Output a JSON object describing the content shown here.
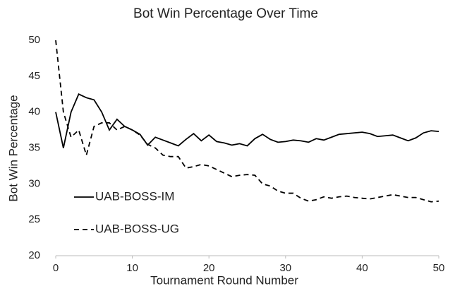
{
  "chart_data": {
    "type": "line",
    "title": "Bot Win Percentage Over Time",
    "xlabel": "Tournament Round Number",
    "ylabel": "Bot Win Percentage",
    "x": [
      0,
      1,
      2,
      3,
      4,
      5,
      6,
      7,
      8,
      9,
      10,
      11,
      12,
      13,
      14,
      15,
      16,
      17,
      18,
      19,
      20,
      21,
      22,
      23,
      24,
      25,
      26,
      27,
      28,
      29,
      30,
      31,
      32,
      33,
      34,
      35,
      36,
      37,
      38,
      39,
      40,
      41,
      42,
      43,
      44,
      45,
      46,
      47,
      48,
      49,
      50
    ],
    "series": [
      {
        "name": "UAB-BOSS-IM",
        "color": "#000000",
        "dash": "solid",
        "values": [
          40,
          35,
          40,
          42.5,
          42,
          41.7,
          40,
          37.5,
          39,
          38,
          37.5,
          36.9,
          35.4,
          36.5,
          36.1,
          35.7,
          35.3,
          36.2,
          37,
          36,
          36.8,
          35.9,
          35.7,
          35.4,
          35.6,
          35.3,
          36.3,
          36.9,
          36.2,
          35.8,
          35.9,
          36.1,
          36,
          35.8,
          36.3,
          36.1,
          36.5,
          36.9,
          37,
          37.1,
          37.2,
          37,
          36.6,
          36.7,
          36.8,
          36.4,
          36,
          36.4,
          37.1,
          37.4,
          37.3
        ]
      },
      {
        "name": "UAB-BOSS-UG",
        "color": "#000000",
        "dash": "dashed",
        "values": [
          50,
          40,
          36.5,
          37.5,
          34,
          38,
          38.5,
          38.5,
          37.5,
          38,
          37.5,
          36.8,
          35.5,
          35,
          34,
          33.8,
          33.8,
          32.2,
          32.4,
          32.7,
          32.5,
          32,
          31.5,
          31,
          31.2,
          31.3,
          31.2,
          30,
          29.7,
          29,
          28.7,
          28.7,
          28,
          27.6,
          27.8,
          28.2,
          28,
          28.2,
          28.3,
          28.1,
          28,
          27.9,
          28.1,
          28.3,
          28.5,
          28.3,
          28.1,
          28.1,
          27.8,
          27.5,
          27.6
        ]
      }
    ],
    "xlim": [
      0,
      50
    ],
    "xticks": [
      0,
      10,
      20,
      30,
      40,
      50
    ],
    "ylim": [
      20,
      50
    ],
    "yticks": [
      20,
      25,
      30,
      35,
      40,
      45,
      50
    ],
    "grid": false,
    "legend": "lower left"
  }
}
